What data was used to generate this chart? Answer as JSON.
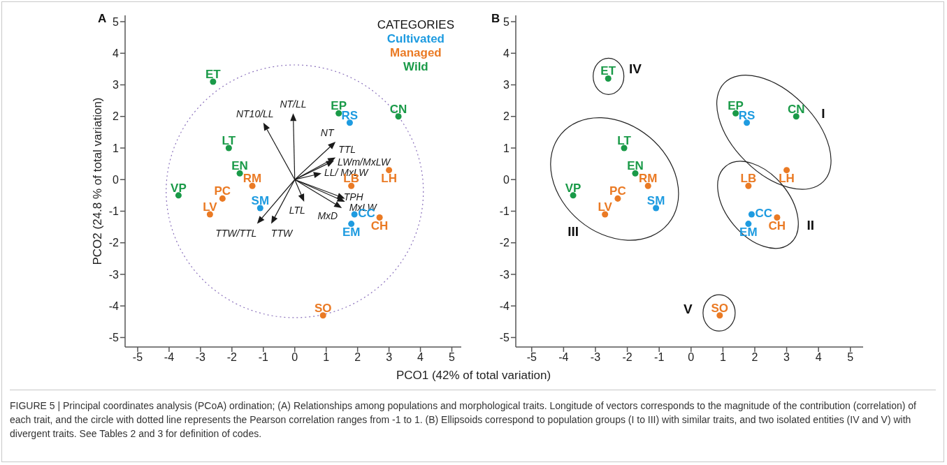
{
  "chart_data": [
    {
      "type": "scatter",
      "title": "A",
      "xlabel": "PCO1 (42% of total variation)",
      "ylabel": "PCO2 (24.8 % of total variation)",
      "legend_title": "CATEGORIES",
      "xlim": [
        -5.4,
        5.3
      ],
      "ylim": [
        -5.3,
        5.2
      ],
      "xticks": [
        -5,
        -4,
        -3,
        -2,
        -1,
        0,
        1,
        2,
        3,
        4,
        5
      ],
      "yticks": [
        -5,
        -4,
        -3,
        -2,
        -1,
        0,
        1,
        2,
        3,
        4,
        5
      ],
      "series": [
        {
          "name": "Cultivated",
          "color": "#1e9be0",
          "x": [
            1.75,
            -1.1,
            1.9,
            1.8
          ],
          "values": [
            1.8,
            -0.9,
            -1.1,
            -1.4
          ],
          "value_labels": [
            "RS",
            "SM",
            "CC",
            "EM"
          ]
        },
        {
          "name": "Managed",
          "color": "#ea7a24",
          "x": [
            3.0,
            -1.35,
            1.8,
            -2.3,
            -2.7,
            2.7,
            0.9
          ],
          "values": [
            0.3,
            -0.2,
            -0.2,
            -0.6,
            -1.1,
            -1.2,
            -4.3
          ],
          "value_labels": [
            "LH",
            "RM",
            "LB",
            "PC",
            "LV",
            "CH",
            "SO"
          ]
        },
        {
          "name": "Wild",
          "color": "#1a9a48",
          "x": [
            -2.6,
            1.4,
            3.3,
            -2.1,
            -1.75,
            -3.7
          ],
          "values": [
            3.1,
            2.1,
            2.0,
            1.0,
            0.2,
            -0.5
          ],
          "value_labels": [
            "ET",
            "EP",
            "CN",
            "LT",
            "EN",
            "VP"
          ]
        }
      ],
      "annotations": [
        "NT/LL",
        "NT10/LL",
        "NT",
        "TTL",
        "LWm/MxLW",
        "LL/ MxLW",
        "TPH",
        "MxLW",
        "MxD",
        "LTL",
        "TTW/TTL",
        "TTW",
        "FIGURE 5 | Principal coordinates analysis (PCoA) ordination; (A) Relationships among populations and morphological traits. Longitude of vectors corresponds to the magnitude of the contribution (correlation) of each trait, and the circle with dotted line represents the Pearson correlation ranges from -1 to 1. (B) Ellipsoids correspond to population groups (I to III) with similar traits, and two isolated entities (IV and V) with divergent traits. See Tables 2 and 3 for definition of codes."
      ]
    },
    {
      "type": "scatter",
      "title": "B",
      "xlim": [
        -5.5,
        5.4
      ],
      "ylim": [
        -5.3,
        5.2
      ],
      "xticks": [
        -5,
        -4,
        -3,
        -2,
        -1,
        0,
        1,
        2,
        3,
        4,
        5
      ],
      "yticks": [
        -5,
        -4,
        -3,
        -2,
        -1,
        0,
        1,
        2,
        3,
        4,
        5
      ],
      "series": [
        {
          "color": "#1e9be0",
          "x": [
            1.75,
            -1.1,
            1.9,
            1.8
          ],
          "values": [
            1.8,
            -0.9,
            -1.1,
            -1.4
          ],
          "value_labels": [
            "RS",
            "SM",
            "CC",
            "EM"
          ]
        },
        {
          "color": "#ea7a24",
          "x": [
            3.0,
            -1.35,
            1.8,
            -2.3,
            -2.7,
            2.7,
            0.9
          ],
          "values": [
            0.3,
            -0.2,
            -0.2,
            -0.6,
            -1.1,
            -1.2,
            -4.3
          ],
          "value_labels": [
            "LH",
            "RM",
            "LB",
            "PC",
            "LV",
            "CH",
            "SO"
          ]
        },
        {
          "color": "#1a9a48",
          "x": [
            -2.6,
            1.4,
            3.3,
            -2.1,
            -1.75,
            -3.7
          ],
          "values": [
            3.2,
            2.1,
            2.0,
            1.0,
            0.2,
            -0.5
          ],
          "value_labels": [
            "ET",
            "EP",
            "CN",
            "LT",
            "EN",
            "VP"
          ]
        }
      ],
      "annotations": [
        "IV",
        "I",
        "II",
        "III",
        "V"
      ]
    }
  ]
}
